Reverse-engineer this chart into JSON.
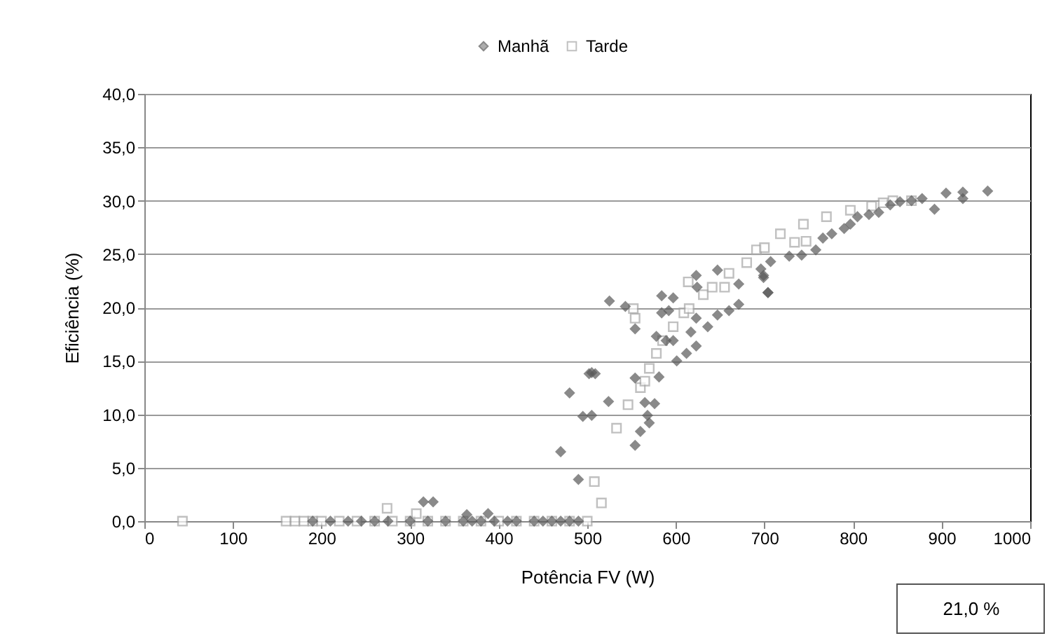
{
  "chart_data": {
    "type": "scatter",
    "xlabel": "Potência FV (W)",
    "ylabel": "Eficiência (%)",
    "xlim": [
      0,
      1000
    ],
    "xticks": [
      0,
      100,
      200,
      300,
      400,
      500,
      600,
      700,
      800,
      900,
      1000
    ],
    "ylim": [
      0,
      40
    ],
    "yticks": [
      {
        "value": 0,
        "label": "0,0"
      },
      {
        "value": 5,
        "label": "5,0"
      },
      {
        "value": 10,
        "label": "10,0"
      },
      {
        "value": 15,
        "label": "15,0"
      },
      {
        "value": 20,
        "label": "20,0"
      },
      {
        "value": 25,
        "label": "25,0"
      },
      {
        "value": 30,
        "label": "30,0"
      },
      {
        "value": 35,
        "label": "35,0"
      },
      {
        "value": 40,
        "label": "40,0"
      }
    ],
    "grid": "y",
    "legend": "top",
    "annotations": [
      "21,0 %"
    ],
    "series": [
      {
        "name": "Manhã",
        "color": "#595959",
        "marker": "diamond",
        "x": [
          190,
          210,
          230,
          245,
          260,
          275,
          300,
          320,
          340,
          360,
          370,
          380,
          395,
          410,
          420,
          440,
          450,
          460,
          470,
          480,
          490,
          315,
          326,
          364,
          388,
          470,
          480,
          490,
          495,
          505,
          502,
          509,
          524,
          505,
          554,
          560,
          565,
          568,
          570,
          576,
          554,
          581,
          601,
          612,
          578,
          589,
          597,
          584,
          592,
          597,
          584,
          623,
          623,
          617,
          636,
          647,
          660,
          671,
          671,
          647,
          624,
          623,
          699,
          704,
          696,
          699,
          704,
          707,
          728,
          742,
          758,
          766,
          776,
          790,
          797,
          805,
          818,
          829,
          842,
          853,
          866,
          878,
          892,
          905,
          924,
          924,
          952,
          525,
          543,
          554
        ],
        "values": [
          0,
          0,
          0,
          0,
          0,
          0,
          0,
          0,
          0,
          0,
          0,
          0,
          0,
          0,
          0,
          0,
          0,
          0,
          0,
          0,
          0,
          1.8,
          1.8,
          0.6,
          0.7,
          6.5,
          12.0,
          3.9,
          9.8,
          13.9,
          13.8,
          13.8,
          11.2,
          9.9,
          7.1,
          8.4,
          11.1,
          9.9,
          9.2,
          11.0,
          13.4,
          13.5,
          15.0,
          15.7,
          17.3,
          16.9,
          16.9,
          19.5,
          19.7,
          20.9,
          21.1,
          23.0,
          19.0,
          17.7,
          18.2,
          23.5,
          19.7,
          20.3,
          22.2,
          19.3,
          21.9,
          16.4,
          23.0,
          21.4,
          23.6,
          22.8,
          21.4,
          24.3,
          24.8,
          24.9,
          25.4,
          26.5,
          26.9,
          27.4,
          27.8,
          28.5,
          28.7,
          28.9,
          29.6,
          29.9,
          30.0,
          30.2,
          29.2,
          30.7,
          30.8,
          30.2,
          30.9,
          20.6,
          20.1,
          18.0
        ]
      },
      {
        "name": "Tarde",
        "color": "#a6a6a6",
        "marker": "square",
        "x": [
          43,
          160,
          170,
          180,
          190,
          200,
          220,
          240,
          260,
          280,
          300,
          320,
          340,
          360,
          380,
          400,
          420,
          440,
          460,
          480,
          500,
          274,
          307,
          508,
          516,
          533,
          546,
          552,
          554,
          560,
          565,
          570,
          578,
          585,
          597,
          609,
          615,
          631,
          614,
          641,
          655,
          660,
          680,
          691,
          700,
          718,
          734,
          744,
          747,
          770,
          797,
          821,
          834,
          845,
          866
        ],
        "values": [
          0,
          0,
          0,
          0,
          0,
          0,
          0,
          0,
          0,
          0,
          0,
          0,
          0,
          0,
          0,
          0,
          0,
          0,
          0,
          0,
          0,
          1.2,
          0.7,
          3.7,
          1.7,
          8.7,
          10.9,
          19.9,
          19.0,
          12.5,
          13.1,
          14.3,
          15.7,
          16.9,
          18.2,
          19.5,
          19.9,
          21.2,
          22.4,
          21.9,
          21.9,
          23.2,
          24.2,
          25.4,
          25.6,
          26.9,
          26.1,
          27.8,
          26.2,
          28.5,
          29.1,
          29.5,
          29.8,
          30.0,
          30.0
        ]
      }
    ]
  }
}
